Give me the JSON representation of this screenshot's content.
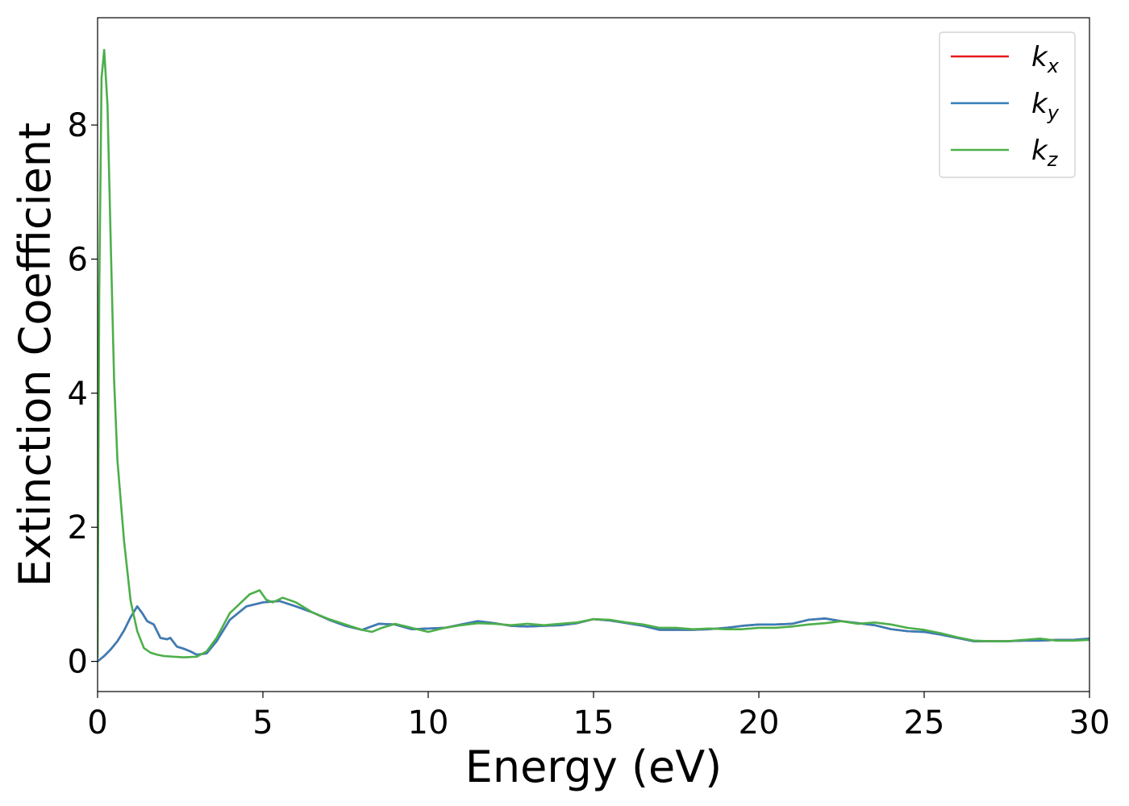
{
  "chart_data": {
    "type": "line",
    "title": "",
    "xlabel": "Energy (eV)",
    "ylabel": "Extinction Coefficient",
    "xlim": [
      0,
      30
    ],
    "ylim": [
      -0.45,
      9.6
    ],
    "xticks": [
      "0",
      "5",
      "10",
      "15",
      "20",
      "25",
      "30"
    ],
    "yticks": [
      "0",
      "2",
      "4",
      "6",
      "8"
    ],
    "grid": false,
    "legend_position": "top-right",
    "series": [
      {
        "name": "k_x",
        "legend_base": "k",
        "legend_sub": "x",
        "color": "#e41a1c",
        "x": [
          0,
          0.2,
          0.4,
          0.6,
          0.8,
          1.0,
          1.2,
          1.35,
          1.5,
          1.7,
          1.9,
          2.1,
          2.2,
          2.4,
          2.6,
          2.8,
          3.0,
          3.3,
          3.6,
          4.0,
          4.5,
          5.0,
          5.5,
          6.0,
          6.5,
          7.0,
          7.5,
          8.0,
          8.5,
          9.0,
          9.5,
          10,
          10.5,
          11,
          11.5,
          12,
          12.5,
          13,
          13.5,
          14,
          14.5,
          15,
          15.5,
          16,
          16.5,
          17,
          17.5,
          18,
          18.5,
          19,
          19.5,
          20,
          20.5,
          21,
          21.5,
          22,
          22.5,
          23,
          23.5,
          24,
          24.5,
          25,
          25.5,
          26,
          26.5,
          27,
          27.5,
          28,
          28.5,
          29,
          29.5,
          30
        ],
        "y": [
          0.0,
          0.08,
          0.18,
          0.3,
          0.46,
          0.66,
          0.82,
          0.72,
          0.6,
          0.55,
          0.35,
          0.33,
          0.35,
          0.22,
          0.19,
          0.15,
          0.1,
          0.12,
          0.3,
          0.62,
          0.82,
          0.88,
          0.9,
          0.82,
          0.73,
          0.62,
          0.53,
          0.47,
          0.56,
          0.55,
          0.48,
          0.49,
          0.5,
          0.55,
          0.6,
          0.57,
          0.53,
          0.52,
          0.53,
          0.54,
          0.57,
          0.63,
          0.61,
          0.57,
          0.53,
          0.47,
          0.47,
          0.47,
          0.48,
          0.5,
          0.53,
          0.55,
          0.55,
          0.56,
          0.62,
          0.64,
          0.6,
          0.57,
          0.54,
          0.48,
          0.45,
          0.44,
          0.4,
          0.35,
          0.3,
          0.3,
          0.3,
          0.31,
          0.31,
          0.32,
          0.32,
          0.34
        ]
      },
      {
        "name": "k_y",
        "legend_base": "k",
        "legend_sub": "y",
        "color": "#377eb8",
        "x": [
          0,
          0.2,
          0.4,
          0.6,
          0.8,
          1.0,
          1.2,
          1.35,
          1.5,
          1.7,
          1.9,
          2.1,
          2.2,
          2.4,
          2.6,
          2.8,
          3.0,
          3.3,
          3.6,
          4.0,
          4.5,
          5.0,
          5.5,
          6.0,
          6.5,
          7.0,
          7.5,
          8.0,
          8.5,
          9.0,
          9.5,
          10,
          10.5,
          11,
          11.5,
          12,
          12.5,
          13,
          13.5,
          14,
          14.5,
          15,
          15.5,
          16,
          16.5,
          17,
          17.5,
          18,
          18.5,
          19,
          19.5,
          20,
          20.5,
          21,
          21.5,
          22,
          22.5,
          23,
          23.5,
          24,
          24.5,
          25,
          25.5,
          26,
          26.5,
          27,
          27.5,
          28,
          28.5,
          29,
          29.5,
          30
        ],
        "y": [
          0.0,
          0.08,
          0.18,
          0.3,
          0.46,
          0.66,
          0.82,
          0.72,
          0.6,
          0.55,
          0.35,
          0.33,
          0.35,
          0.22,
          0.19,
          0.15,
          0.1,
          0.12,
          0.3,
          0.62,
          0.82,
          0.88,
          0.9,
          0.82,
          0.73,
          0.62,
          0.53,
          0.47,
          0.56,
          0.55,
          0.48,
          0.49,
          0.5,
          0.55,
          0.6,
          0.57,
          0.53,
          0.52,
          0.53,
          0.54,
          0.57,
          0.63,
          0.61,
          0.57,
          0.53,
          0.47,
          0.47,
          0.47,
          0.48,
          0.5,
          0.53,
          0.55,
          0.55,
          0.56,
          0.62,
          0.64,
          0.6,
          0.57,
          0.54,
          0.48,
          0.45,
          0.44,
          0.4,
          0.35,
          0.3,
          0.3,
          0.3,
          0.31,
          0.31,
          0.32,
          0.32,
          0.34
        ]
      },
      {
        "name": "k_z",
        "legend_base": "k",
        "legend_sub": "z",
        "color": "#4daf4a",
        "x": [
          0,
          0.05,
          0.12,
          0.2,
          0.3,
          0.4,
          0.5,
          0.6,
          0.8,
          1.0,
          1.2,
          1.4,
          1.6,
          1.8,
          2.0,
          2.3,
          2.6,
          3.0,
          3.3,
          3.6,
          4.0,
          4.3,
          4.6,
          4.9,
          5.1,
          5.3,
          5.6,
          6.0,
          6.5,
          7.0,
          7.5,
          8.0,
          8.3,
          8.6,
          9.0,
          9.5,
          10,
          10.5,
          11,
          11.5,
          12,
          12.5,
          13,
          13.5,
          14,
          14.5,
          15,
          15.5,
          16,
          16.5,
          17,
          17.5,
          18,
          18.5,
          19,
          19.5,
          20,
          20.5,
          21,
          21.5,
          22,
          22.5,
          23,
          23.5,
          24,
          24.5,
          25,
          25.5,
          26,
          26.5,
          27,
          27.5,
          28,
          28.5,
          29,
          29.5,
          30
        ],
        "y": [
          0.05,
          5.5,
          8.7,
          9.12,
          8.3,
          6.2,
          4.2,
          3.0,
          1.8,
          0.9,
          0.45,
          0.2,
          0.13,
          0.1,
          0.08,
          0.07,
          0.06,
          0.07,
          0.15,
          0.35,
          0.72,
          0.86,
          1.0,
          1.06,
          0.92,
          0.88,
          0.95,
          0.88,
          0.73,
          0.63,
          0.55,
          0.47,
          0.44,
          0.5,
          0.56,
          0.5,
          0.44,
          0.5,
          0.54,
          0.57,
          0.56,
          0.54,
          0.56,
          0.54,
          0.56,
          0.58,
          0.63,
          0.62,
          0.58,
          0.55,
          0.5,
          0.5,
          0.48,
          0.49,
          0.48,
          0.48,
          0.5,
          0.5,
          0.52,
          0.55,
          0.57,
          0.6,
          0.56,
          0.58,
          0.55,
          0.5,
          0.47,
          0.42,
          0.36,
          0.31,
          0.3,
          0.3,
          0.32,
          0.34,
          0.31,
          0.31,
          0.32
        ]
      }
    ]
  }
}
